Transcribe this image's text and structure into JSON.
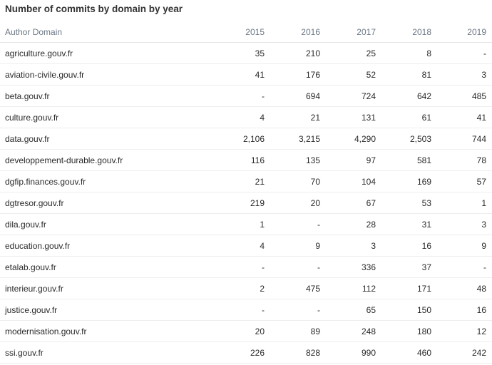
{
  "chart_data": {
    "type": "table",
    "title": "Number of commits by domain by year",
    "columns": [
      "Author Domain",
      "2015",
      "2016",
      "2017",
      "2018",
      "2019"
    ],
    "rows": [
      [
        "agriculture.gouv.fr",
        "35",
        "210",
        "25",
        "8",
        "-"
      ],
      [
        "aviation-civile.gouv.fr",
        "41",
        "176",
        "52",
        "81",
        "3"
      ],
      [
        "beta.gouv.fr",
        "-",
        "694",
        "724",
        "642",
        "485"
      ],
      [
        "culture.gouv.fr",
        "4",
        "21",
        "131",
        "61",
        "41"
      ],
      [
        "data.gouv.fr",
        "2,106",
        "3,215",
        "4,290",
        "2,503",
        "744"
      ],
      [
        "developpement-durable.gouv.fr",
        "116",
        "135",
        "97",
        "581",
        "78"
      ],
      [
        "dgfip.finances.gouv.fr",
        "21",
        "70",
        "104",
        "169",
        "57"
      ],
      [
        "dgtresor.gouv.fr",
        "219",
        "20",
        "67",
        "53",
        "1"
      ],
      [
        "dila.gouv.fr",
        "1",
        "-",
        "28",
        "31",
        "3"
      ],
      [
        "education.gouv.fr",
        "4",
        "9",
        "3",
        "16",
        "9"
      ],
      [
        "etalab.gouv.fr",
        "-",
        "-",
        "336",
        "37",
        "-"
      ],
      [
        "interieur.gouv.fr",
        "2",
        "475",
        "112",
        "171",
        "48"
      ],
      [
        "justice.gouv.fr",
        "-",
        "-",
        "65",
        "150",
        "16"
      ],
      [
        "modernisation.gouv.fr",
        "20",
        "89",
        "248",
        "180",
        "12"
      ],
      [
        "ssi.gouv.fr",
        "226",
        "828",
        "990",
        "460",
        "242"
      ]
    ]
  }
}
